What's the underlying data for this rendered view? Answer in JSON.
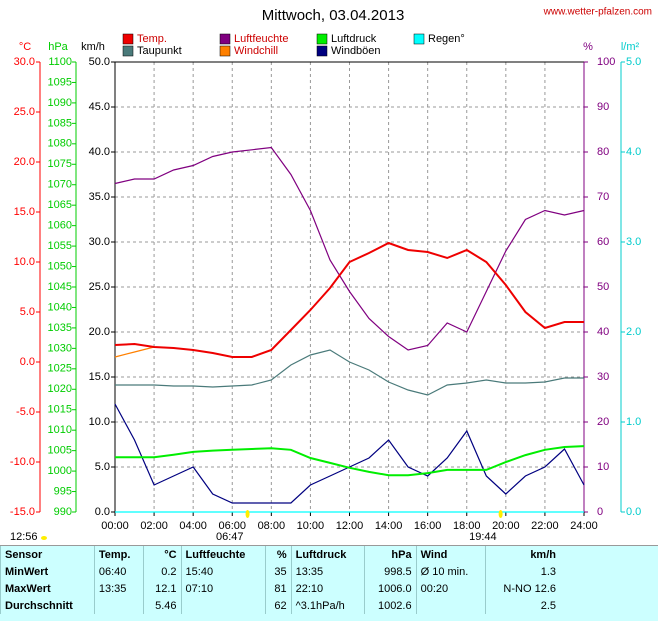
{
  "chart_data": {
    "type": "line",
    "title": "Mittwoch, 03.04.2013",
    "source": "www.wetter-pfalzen.com",
    "x": [
      0,
      1,
      2,
      3,
      4,
      5,
      6,
      7,
      8,
      9,
      10,
      11,
      12,
      13,
      14,
      15,
      16,
      17,
      18,
      19,
      20,
      21,
      22,
      23,
      24
    ],
    "xlim": [
      0,
      24
    ],
    "xticks": [
      {
        "value": 0,
        "label": "00:00"
      },
      {
        "value": 2,
        "label": "02:00"
      },
      {
        "value": 4,
        "label": "04:00"
      },
      {
        "value": 6,
        "label": "06:00"
      },
      {
        "value": 8,
        "label": "08:00"
      },
      {
        "value": 10,
        "label": "10:00"
      },
      {
        "value": 12,
        "label": "12:00"
      },
      {
        "value": 14,
        "label": "14:00"
      },
      {
        "value": 16,
        "label": "16:00"
      },
      {
        "value": 18,
        "label": "18:00"
      },
      {
        "value": 20,
        "label": "20:00"
      },
      {
        "value": 22,
        "label": "22:00"
      },
      {
        "value": 24,
        "label": "24:00"
      }
    ],
    "grid": true,
    "axes": [
      {
        "unit": "°C",
        "color": "#ff0000",
        "lim": [
          -15,
          30
        ],
        "ticks": [
          {
            "value": -15,
            "label": "-15.0"
          },
          {
            "value": -10,
            "label": "-10.0"
          },
          {
            "value": -5,
            "label": "-5.0"
          },
          {
            "value": 0,
            "label": "0.0"
          },
          {
            "value": 5,
            "label": "5.0"
          },
          {
            "value": 10,
            "label": "10.0"
          },
          {
            "value": 15,
            "label": "15.0"
          },
          {
            "value": 20,
            "label": "20.0"
          },
          {
            "value": 25,
            "label": "25.0"
          },
          {
            "value": 30,
            "label": "30.0"
          }
        ]
      },
      {
        "unit": "hPa",
        "color": "#00cc00",
        "lim": [
          990,
          1100
        ],
        "ticks": [
          990,
          995,
          1000,
          1005,
          1010,
          1015,
          1020,
          1025,
          1030,
          1035,
          1040,
          1045,
          1050,
          1055,
          1060,
          1065,
          1070,
          1075,
          1080,
          1085,
          1090,
          1095,
          1100
        ]
      },
      {
        "unit": "km/h",
        "color": "#000000",
        "lim": [
          0,
          50
        ],
        "ticks": [
          {
            "value": 0,
            "label": "0.0"
          },
          {
            "value": 5,
            "label": "5.0"
          },
          {
            "value": 10,
            "label": "10.0"
          },
          {
            "value": 15,
            "label": "15.0"
          },
          {
            "value": 20,
            "label": "20.0"
          },
          {
            "value": 25,
            "label": "25.0"
          },
          {
            "value": 30,
            "label": "30.0"
          },
          {
            "value": 35,
            "label": "35.0"
          },
          {
            "value": 40,
            "label": "40.0"
          },
          {
            "value": 45,
            "label": "45.0"
          },
          {
            "value": 50,
            "label": "50.0"
          }
        ]
      },
      {
        "unit": "%",
        "color": "#800080",
        "lim": [
          0,
          100
        ],
        "ticks": [
          0,
          10,
          20,
          30,
          40,
          50,
          60,
          70,
          80,
          90,
          100
        ]
      },
      {
        "unit": "l/m²",
        "color": "#00cccc",
        "lim": [
          0,
          5
        ],
        "ticks": [
          {
            "value": 0,
            "label": "0.0"
          },
          {
            "value": 1,
            "label": "1.0"
          },
          {
            "value": 2,
            "label": "2.0"
          },
          {
            "value": 3,
            "label": "3.0"
          },
          {
            "value": 4,
            "label": "4.0"
          },
          {
            "value": 5,
            "label": "5.0"
          }
        ]
      }
    ],
    "series": [
      {
        "name": "Temp.",
        "color": "#ee0000",
        "axis": 0,
        "values": [
          1.7,
          1.8,
          1.5,
          1.4,
          1.2,
          0.9,
          0.5,
          0.5,
          1.2,
          3.2,
          5.2,
          7.4,
          10.0,
          10.9,
          11.9,
          11.2,
          11.0,
          10.4,
          11.2,
          10.0,
          7.7,
          5.0,
          3.4,
          4.0,
          4.0
        ]
      },
      {
        "name": "Luftfeuchte",
        "color": "#800080",
        "axis": 3,
        "values": [
          73,
          74,
          74,
          76,
          77,
          79,
          80,
          80.5,
          81,
          75,
          67,
          56,
          49,
          43,
          39,
          36,
          37,
          42,
          40,
          49,
          58,
          65,
          67,
          66,
          67
        ]
      },
      {
        "name": "Luftdruck",
        "color": "#00ee00",
        "axis": 1,
        "values": [
          1003.4,
          1003.4,
          1003.4,
          1004.0,
          1004.7,
          1005.0,
          1005.2,
          1005.4,
          1005.6,
          1005.2,
          1003.2,
          1002.0,
          1000.8,
          999.8,
          999.0,
          999.0,
          999.5,
          1000.3,
          1000.3,
          1000.3,
          1002.2,
          1003.9,
          1005.2,
          1005.9,
          1006.1
        ]
      },
      {
        "name": "Regen°",
        "color": "#00ffff",
        "axis": 4,
        "values": [
          0,
          0,
          0,
          0,
          0,
          0,
          0,
          0,
          0,
          0,
          0,
          0,
          0,
          0,
          0,
          0,
          0,
          0,
          0,
          0,
          0,
          0,
          0,
          0,
          0
        ]
      },
      {
        "name": "Taupunkt",
        "color": "#4a7a7a",
        "axis": 0,
        "values": [
          -2.3,
          -2.3,
          -2.3,
          -2.4,
          -2.4,
          -2.5,
          -2.4,
          -2.3,
          -1.8,
          -0.3,
          0.7,
          1.2,
          0,
          -0.8,
          -2.0,
          -2.8,
          -3.3,
          -2.3,
          -2.1,
          -1.8,
          -2.1,
          -2.1,
          -2.0,
          -1.6,
          -1.6
        ]
      },
      {
        "name": "Windchill",
        "color": "#ff8000",
        "axis": 0,
        "values": [
          0.5,
          1.0,
          1.5,
          1.4,
          1.2,
          0.9,
          0.5,
          0.5,
          1.2,
          3.2,
          5.2,
          7.4,
          10.0,
          10.9,
          11.9,
          11.2,
          11.0,
          10.4,
          11.2,
          10.0,
          7.7,
          5.0,
          3.4,
          4.0,
          4.0
        ]
      },
      {
        "name": "Windböen",
        "color": "#000080",
        "axis": 2,
        "values": [
          12,
          8,
          3,
          4,
          5,
          2,
          1,
          1,
          1,
          1,
          3,
          4,
          5,
          6,
          8,
          5,
          4,
          6,
          9,
          4,
          2,
          4,
          5,
          7,
          3
        ]
      }
    ],
    "day_length": "12:56",
    "sunrise": "06:47",
    "sunset": "19:44"
  },
  "table": {
    "headers": [
      "Sensor",
      "Temp.",
      "°C",
      "Luftfeuchte",
      "%",
      "Luftdruck",
      "hPa",
      "Wind",
      "km/h"
    ],
    "rows": [
      [
        "MinWert",
        "06:40",
        "0.2",
        "15:40",
        "35",
        "13:35",
        "998.5",
        "Ø 10 min.",
        "1.3"
      ],
      [
        "MaxWert",
        "13:35",
        "12.1",
        "07:10",
        "81",
        "22:10",
        "1006.0",
        "00:20",
        "N-NO 12.6"
      ],
      [
        "Durchschnitt",
        null,
        "5.46",
        null,
        "62",
        "^3.1hPa/h",
        "1002.6",
        null,
        "2.5"
      ]
    ]
  }
}
